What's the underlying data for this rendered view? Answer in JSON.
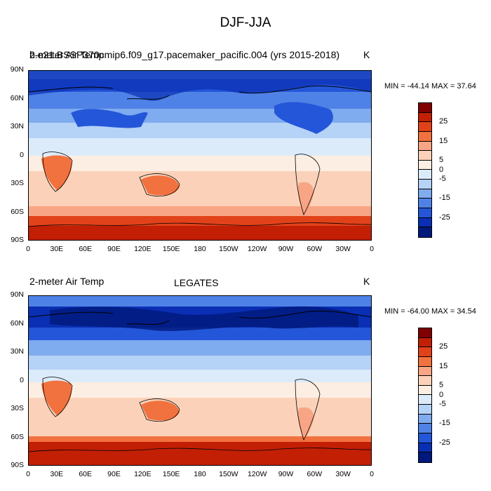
{
  "figure_title": "DJF-JJA",
  "panels": [
    {
      "left_label": "2-meter Air Temp",
      "center_label": "b.e21.BSSP370cmip6.f09_g17.pacemaker_pacific.004 (yrs 2015-2018)",
      "units": "K",
      "minmax": "MIN = -44.14 MAX =  37.64"
    },
    {
      "left_label": "2-meter Air Temp",
      "center_label": "LEGATES",
      "units": "K",
      "minmax": "MIN = -64.00 MAX =  34.54"
    }
  ],
  "lat_labels": [
    "90N",
    "60N",
    "30N",
    "0",
    "30S",
    "60S",
    "90S"
  ],
  "lon_labels": [
    "0",
    "30E",
    "60E",
    "90E",
    "120E",
    "150E",
    "180",
    "150W",
    "120W",
    "90W",
    "60W",
    "30W",
    "0"
  ],
  "colorbar": {
    "labels": [
      "25",
      "15",
      "5",
      "0",
      "-5",
      "-15",
      "-25"
    ],
    "colors": [
      "#800000",
      "#c21f05",
      "#e2421a",
      "#f2723f",
      "#f8a585",
      "#fbd2b9",
      "#fdeee3",
      "#dcebfa",
      "#b5d2f7",
      "#7fabef",
      "#4f82e6",
      "#2456d9",
      "#0a2fb4",
      "#00197a"
    ]
  },
  "chart_data": {
    "type": "heatmap",
    "title": "DJF-JJA",
    "x_axis_ticks": [
      "0",
      "30E",
      "60E",
      "90E",
      "120E",
      "150E",
      "180",
      "150W",
      "120W",
      "90W",
      "60W",
      "30W",
      "0"
    ],
    "y_axis_ticks": [
      "90N",
      "60N",
      "30N",
      "0",
      "30S",
      "60S",
      "90S"
    ],
    "xlim": [
      0,
      360
    ],
    "ylim": [
      -90,
      90
    ],
    "panels": [
      {
        "subtitle": "b.e21.BSSP370cmip6.f09_g17.pacemaker_pacific.004 (yrs 2015-2018)",
        "variable": "2-meter Air Temp",
        "units": "K",
        "min": -44.14,
        "max": 37.64
      },
      {
        "subtitle": "LEGATES",
        "variable": "2-meter Air Temp",
        "units": "K",
        "min": -64.0,
        "max": 34.54
      }
    ],
    "colorbar_levels": [
      -30,
      -25,
      -20,
      -15,
      -10,
      -5,
      -2,
      0,
      2,
      5,
      10,
      15,
      20,
      25,
      30
    ]
  }
}
